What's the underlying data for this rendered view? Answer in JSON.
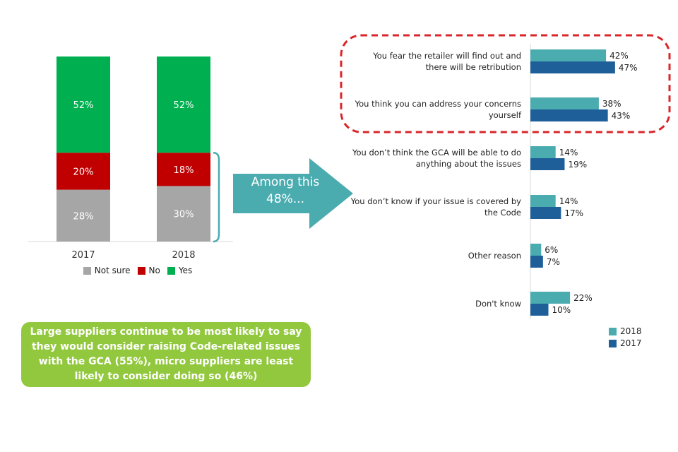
{
  "chart_data": [
    {
      "type": "bar",
      "stacked": true,
      "categories": [
        "2017",
        "2018"
      ],
      "series": [
        {
          "name": "Not sure",
          "values": [
            28,
            30
          ],
          "labels": [
            "28%",
            "30%"
          ],
          "color": "#a6a6a6"
        },
        {
          "name": "No",
          "values": [
            20,
            18
          ],
          "labels": [
            "20%",
            "18%"
          ],
          "color": "#c00000"
        },
        {
          "name": "Yes",
          "values": [
            52,
            52
          ],
          "labels": [
            "52%",
            "52%"
          ],
          "color": "#00b050"
        }
      ],
      "ylim": [
        0,
        100
      ],
      "legend_position": "bottom"
    },
    {
      "type": "bar",
      "orientation": "horizontal",
      "categories": [
        "You fear the retailer will find out and there will be retribution",
        "You think you can address your concerns yourself",
        "You don’t think the GCA will be able to do anything about the issues",
        "You don’t know if your issue is covered by the Code",
        "Other reason",
        "Don't know"
      ],
      "series": [
        {
          "name": "2018",
          "values": [
            42,
            38,
            14,
            14,
            6,
            22
          ],
          "labels": [
            "42%",
            "38%",
            "14%",
            "14%",
            "6%",
            "22%"
          ],
          "color": "#4bacb0"
        },
        {
          "name": "2017",
          "values": [
            47,
            43,
            19,
            17,
            7,
            10
          ],
          "labels": [
            "47%",
            "43%",
            "19%",
            "17%",
            "7%",
            "10%"
          ],
          "color": "#1f5f99"
        }
      ],
      "highlight_color": "#d9262a",
      "legend_position": "bottom-right"
    }
  ],
  "arrow": {
    "label": "Among this 48%...",
    "color": "#4bacb0"
  },
  "callout": {
    "text": "Large suppliers continue to be most likely to say they would consider raising Code-related issues with the GCA (55%), micro suppliers are least likely to consider doing so (46%)"
  }
}
